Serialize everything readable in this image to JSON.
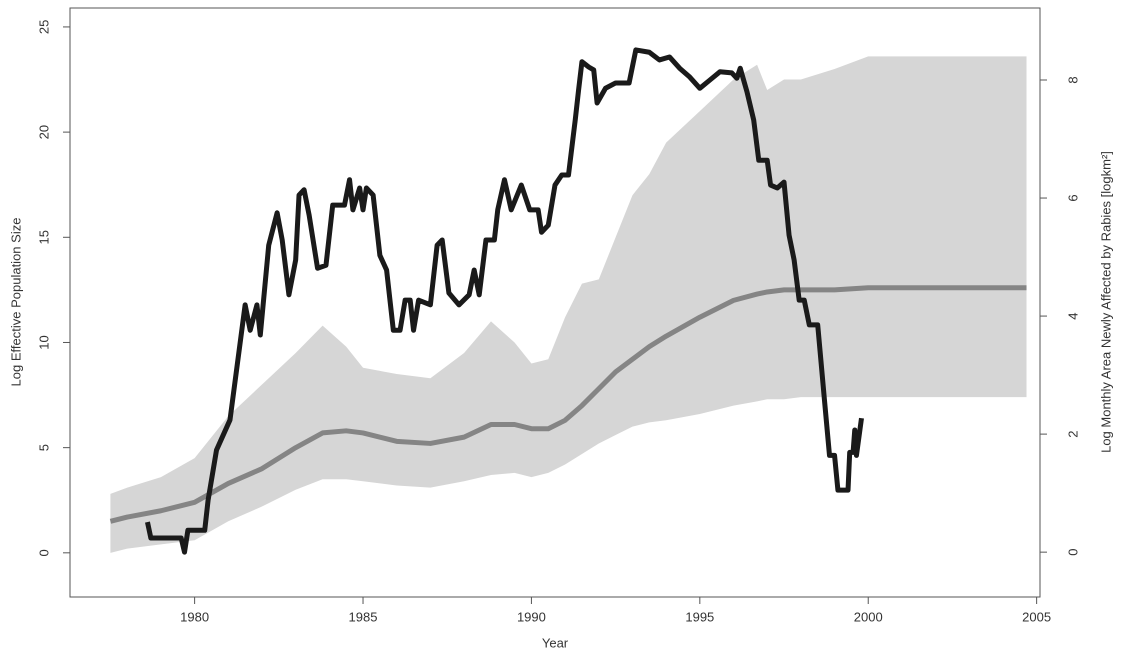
{
  "chart_data": {
    "type": "line",
    "x_label": "Year",
    "y_label": "Log Effective Population Size",
    "y2_label": "Log Monthly Area Newly Affected by Rabies [logkm²]",
    "xlim": [
      1976.3,
      2005.1
    ],
    "xticks": [
      1980,
      1985,
      1990,
      1995,
      2000,
      2005
    ],
    "ylim": [
      -2.1,
      25.9
    ],
    "yticks": [
      0,
      5,
      10,
      15,
      20,
      25
    ],
    "y2lim": [
      -0.76,
      9.22
    ],
    "y2ticks": [
      0,
      2,
      4,
      6,
      8
    ],
    "x": [
      1977.5,
      1978,
      1979,
      1980,
      1981,
      1982,
      1983,
      1983.8,
      1984.5,
      1985,
      1986,
      1987,
      1988,
      1988.8,
      1989.5,
      1990,
      1990.5,
      1991,
      1991.5,
      1992,
      1992.5,
      1993,
      1993.5,
      1994,
      1995,
      1996,
      1996.7,
      1997,
      1997.5,
      1998,
      1999,
      2000,
      2004.7
    ],
    "band": {
      "color": "#d6d6d6",
      "upper": [
        2.8,
        3.1,
        3.6,
        4.5,
        6.5,
        8.0,
        9.5,
        10.8,
        9.8,
        8.8,
        8.5,
        8.3,
        9.5,
        11.0,
        10.0,
        9.0,
        9.2,
        11.2,
        12.8,
        13.0,
        15.0,
        17.0,
        18.0,
        19.5,
        21.0,
        22.5,
        23.2,
        22.0,
        22.5,
        22.5,
        23.0,
        23.6,
        23.6
      ],
      "lower": [
        0,
        0.2,
        0.4,
        0.6,
        1.5,
        2.2,
        3.0,
        3.5,
        3.5,
        3.4,
        3.2,
        3.1,
        3.4,
        3.7,
        3.8,
        3.6,
        3.8,
        4.2,
        4.7,
        5.2,
        5.6,
        6.0,
        6.2,
        6.3,
        6.6,
        7.0,
        7.2,
        7.3,
        7.3,
        7.4,
        7.4,
        7.4,
        7.4
      ]
    },
    "series": [
      {
        "color": "#858585",
        "values": [
          1.5,
          1.7,
          2.0,
          2.4,
          3.3,
          4.0,
          5.0,
          5.7,
          5.8,
          5.7,
          5.3,
          5.2,
          5.5,
          6.1,
          6.1,
          5.9,
          5.9,
          6.3,
          7.0,
          7.8,
          8.6,
          9.2,
          9.8,
          10.3,
          11.2,
          12.0,
          12.3,
          12.4,
          12.5,
          12.5,
          12.5,
          12.6,
          12.6
        ]
      },
      {
        "color": "#1a1a1a",
        "axis": "y2",
        "x": [
          1978.6,
          1978.7,
          1979.6,
          1979.7,
          1979.8,
          1980.3,
          1980.4,
          1980.65,
          1981.05,
          1981.5,
          1981.65,
          1981.85,
          1981.95,
          1982.2,
          1982.45,
          1982.6,
          1982.8,
          1983.0,
          1983.1,
          1983.25,
          1983.4,
          1983.65,
          1983.9,
          1984.1,
          1984.45,
          1984.6,
          1984.7,
          1984.9,
          1985.0,
          1985.1,
          1985.3,
          1985.5,
          1985.7,
          1985.9,
          1986.1,
          1986.25,
          1986.4,
          1986.5,
          1986.65,
          1987.0,
          1987.2,
          1987.35,
          1987.55,
          1987.85,
          1988.15,
          1988.3,
          1988.45,
          1988.65,
          1988.9,
          1989.0,
          1989.2,
          1989.4,
          1989.7,
          1989.95,
          1990.2,
          1990.3,
          1990.5,
          1990.7,
          1990.9,
          1991.1,
          1991.3,
          1991.4,
          1991.5,
          1991.7,
          1991.85,
          1991.95,
          1992.2,
          1992.5,
          1992.9,
          1993.1,
          1993.5,
          1993.8,
          1994.1,
          1994.4,
          1994.7,
          1995.0,
          1995.3,
          1995.6,
          1995.95,
          1996.1,
          1996.2,
          1996.4,
          1996.6,
          1996.75,
          1997.0,
          1997.1,
          1997.3,
          1997.5,
          1997.65,
          1997.8,
          1997.95,
          1998.1,
          1998.25,
          1998.5,
          1998.7,
          1998.85,
          1999.0,
          1999.1,
          1999.4,
          1999.45,
          1999.55,
          1999.6,
          1999.65,
          1999.8
        ],
        "values": [
          0.51,
          0.24,
          0.24,
          0,
          0.37,
          0.37,
          0.88,
          1.73,
          2.24,
          4.19,
          3.76,
          4.19,
          3.68,
          5.2,
          5.75,
          5.29,
          4.36,
          4.95,
          6.05,
          6.14,
          5.71,
          4.81,
          4.86,
          5.88,
          5.88,
          6.31,
          5.8,
          6.17,
          5.8,
          6.17,
          6.05,
          5.03,
          4.78,
          3.76,
          3.76,
          4.27,
          4.27,
          3.76,
          4.27,
          4.19,
          5.2,
          5.29,
          4.39,
          4.19,
          4.36,
          4.78,
          4.36,
          5.29,
          5.29,
          5.8,
          6.31,
          5.8,
          6.22,
          5.8,
          5.8,
          5.42,
          5.54,
          6.22,
          6.39,
          6.39,
          7.32,
          7.83,
          8.31,
          8.22,
          8.17,
          7.61,
          7.86,
          7.95,
          7.95,
          8.51,
          8.47,
          8.34,
          8.39,
          8.2,
          8.05,
          7.86,
          8.0,
          8.14,
          8.12,
          8.03,
          8.2,
          7.8,
          7.32,
          6.64,
          6.64,
          6.22,
          6.17,
          6.27,
          5.37,
          4.95,
          4.27,
          4.27,
          3.85,
          3.85,
          2.58,
          1.64,
          1.64,
          1.05,
          1.05,
          1.69,
          1.69,
          2.07,
          1.64,
          2.27
        ]
      }
    ]
  }
}
